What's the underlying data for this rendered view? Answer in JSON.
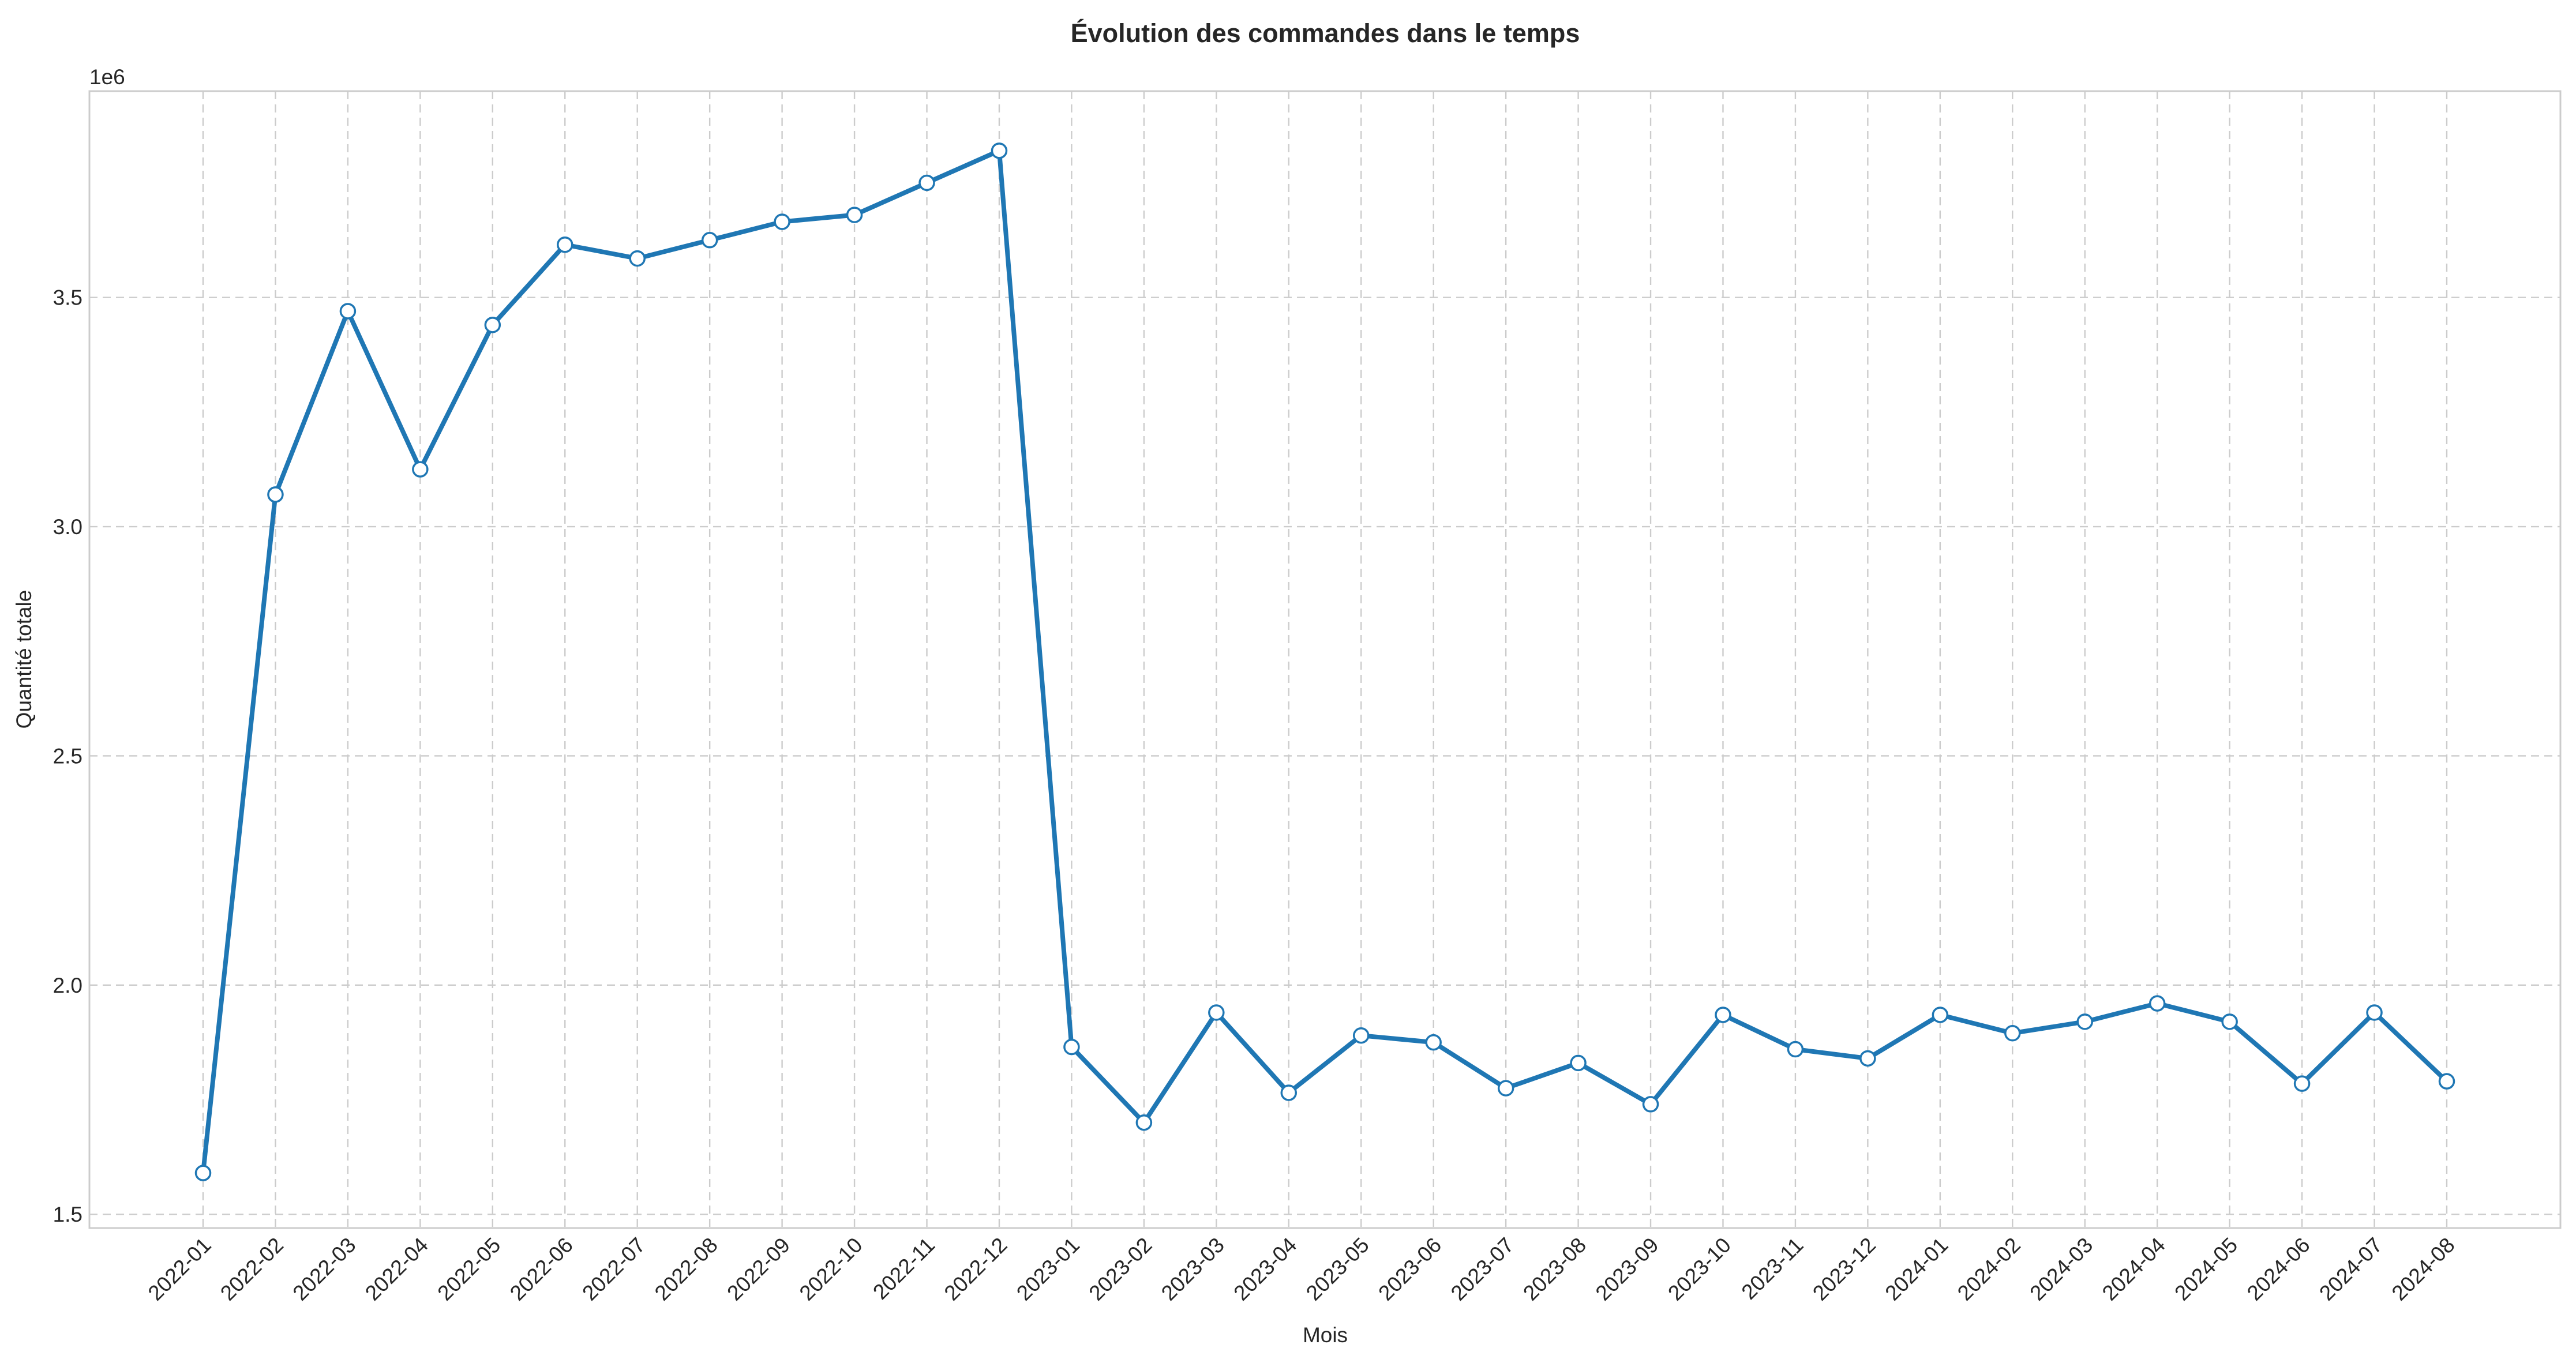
{
  "chart_data": {
    "type": "line",
    "title": "Évolution des commandes dans le temps",
    "xlabel": "Mois",
    "ylabel": "Quantité totale",
    "y_scale_label": "1e6",
    "ylim": [
      1.47,
      3.95
    ],
    "y_ticks": [
      1.5,
      2.0,
      2.5,
      3.0,
      3.5
    ],
    "y_tick_labels": [
      "1.5",
      "2.0",
      "2.5",
      "3.0",
      "3.5"
    ],
    "grid": true,
    "categories": [
      "2022-01",
      "2022-02",
      "2022-03",
      "2022-04",
      "2022-05",
      "2022-06",
      "2022-07",
      "2022-08",
      "2022-09",
      "2022-10",
      "2022-11",
      "2022-12",
      "2023-01",
      "2023-02",
      "2023-03",
      "2023-04",
      "2023-05",
      "2023-06",
      "2023-07",
      "2023-08",
      "2023-09",
      "2023-10",
      "2023-11",
      "2023-12",
      "2024-01",
      "2024-02",
      "2024-03",
      "2024-04",
      "2024-05",
      "2024-06",
      "2024-07",
      "2024-08"
    ],
    "series": [
      {
        "color": "#1f77b4",
        "values": [
          1.59,
          3.07,
          3.47,
          3.125,
          3.44,
          3.615,
          3.585,
          3.625,
          3.665,
          3.68,
          3.75,
          3.82,
          1.865,
          1.7,
          1.94,
          1.765,
          1.89,
          1.875,
          1.775,
          1.83,
          1.74,
          1.935,
          1.86,
          1.84,
          1.935,
          1.895,
          1.92,
          1.96,
          1.92,
          1.785,
          1.94,
          1.79
        ]
      }
    ]
  }
}
